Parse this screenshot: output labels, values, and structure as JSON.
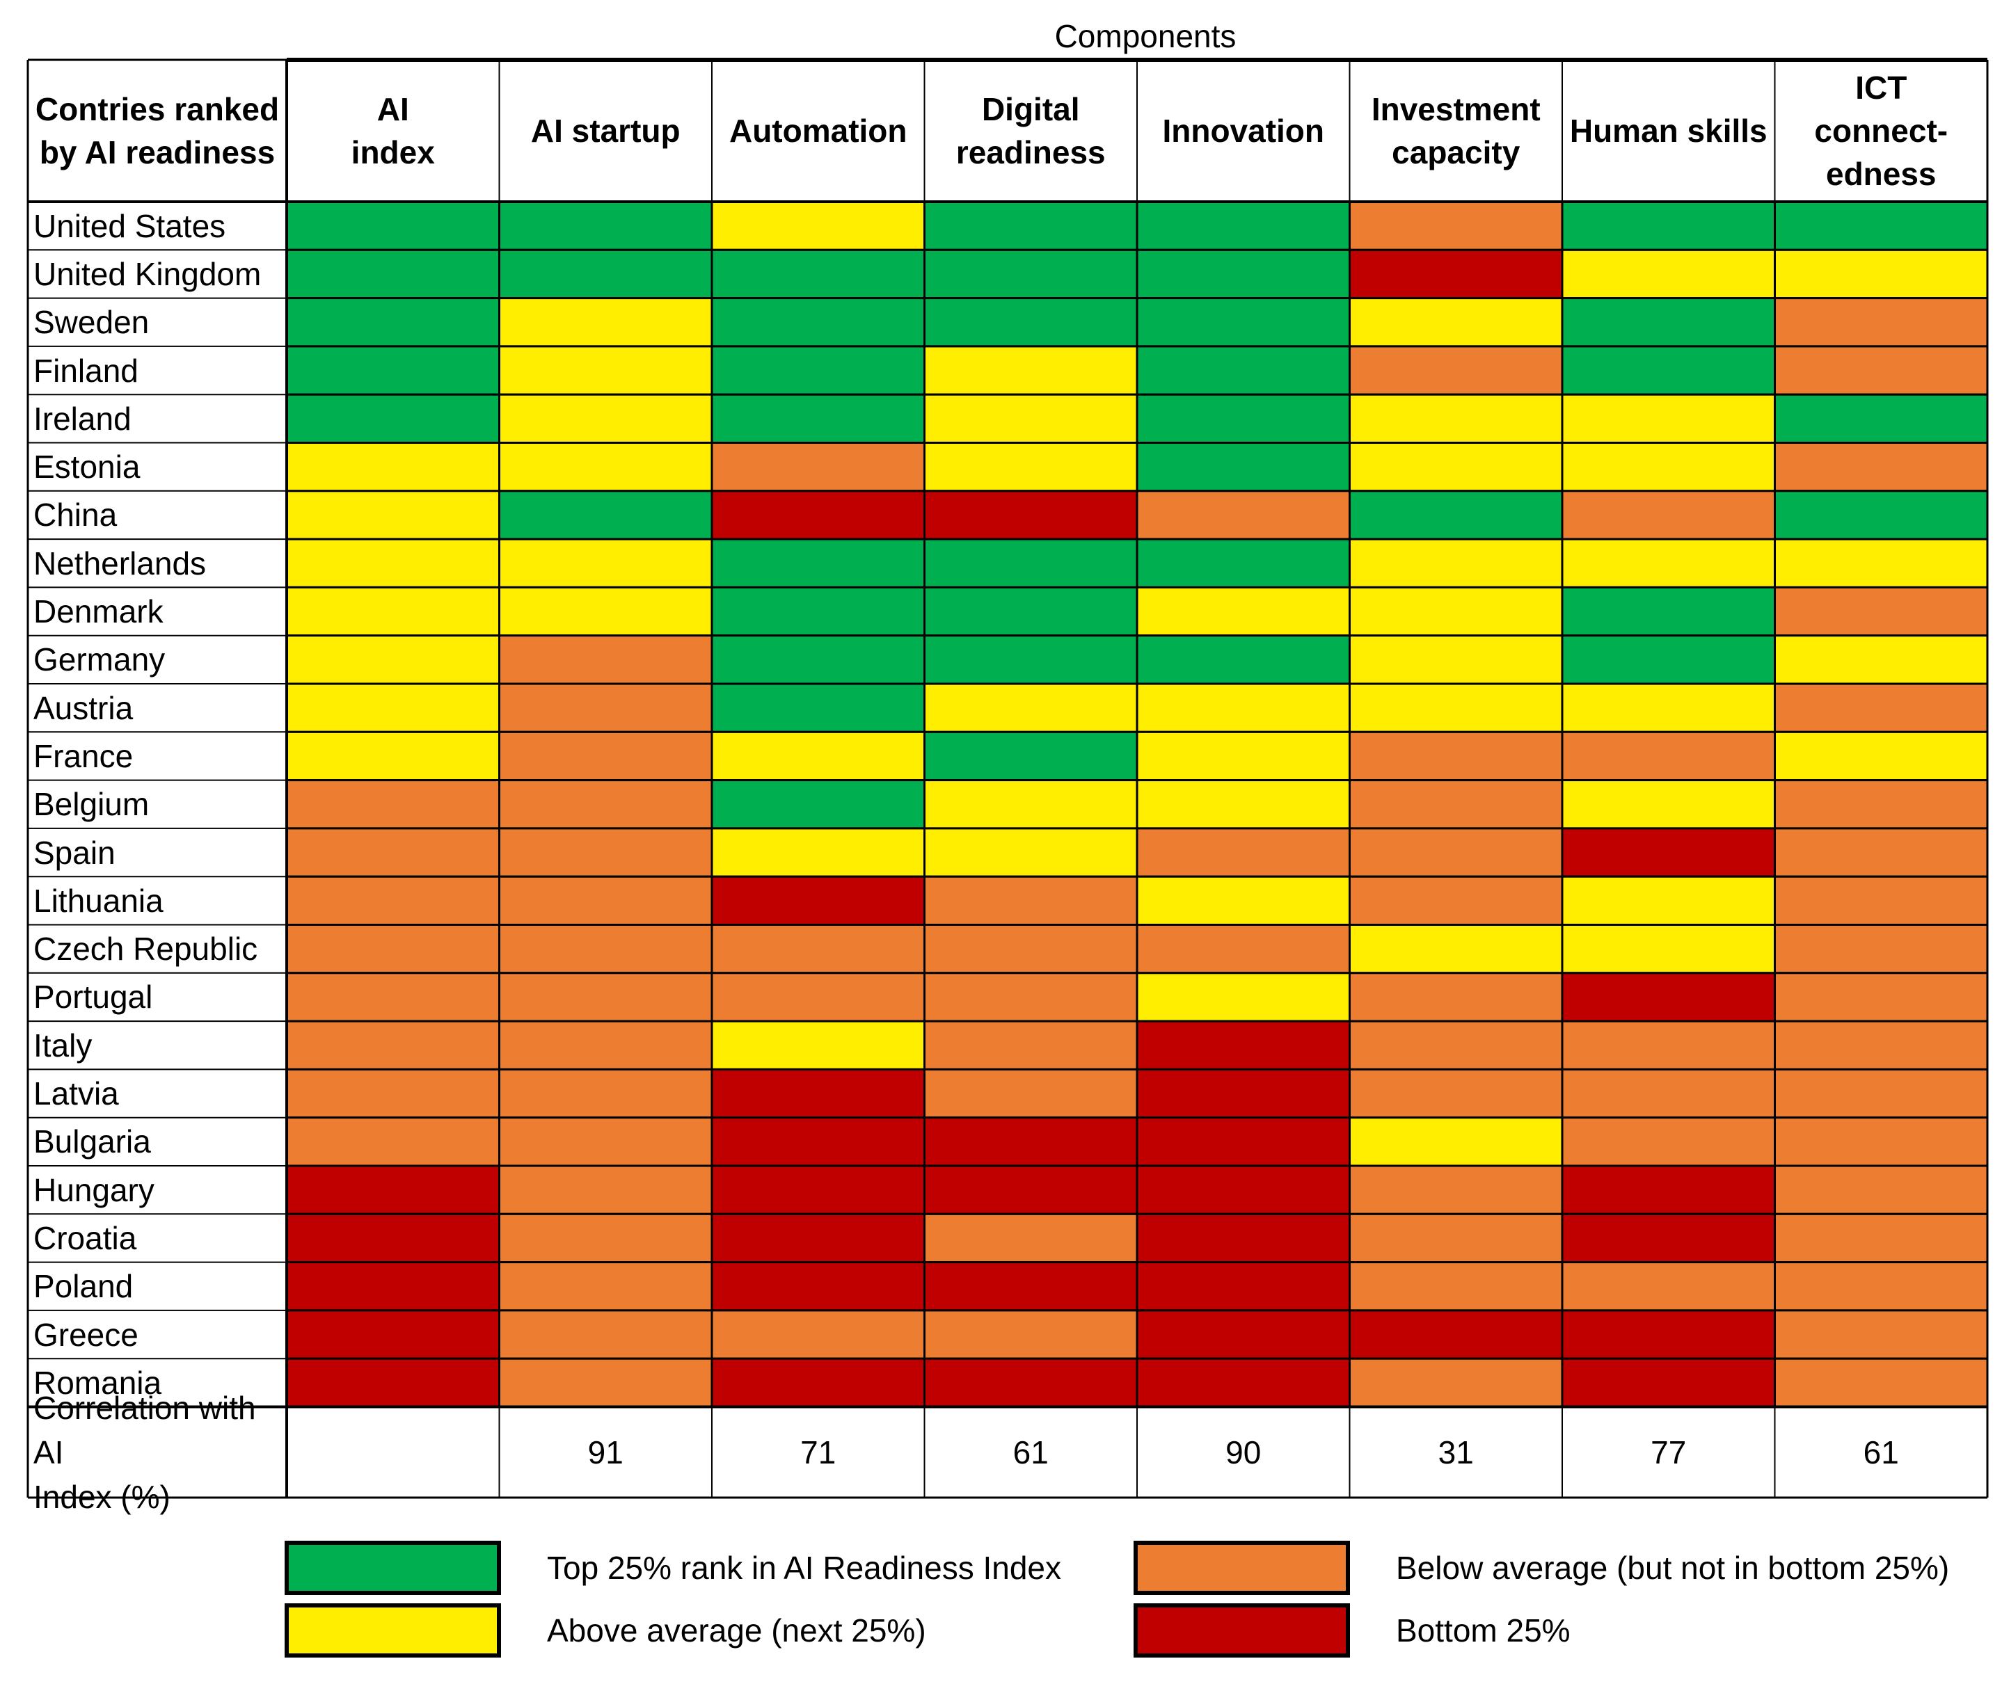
{
  "chart_data": {
    "type": "heatmap",
    "title": "Components",
    "row_header": "Contries ranked\nby AI readiness",
    "columns": [
      "AI\nindex",
      "AI startup",
      "Automation",
      "Digital\nreadiness",
      "Innovation",
      "Investment\ncapacity",
      "Human skills",
      "ICT\nconnect-\nedness"
    ],
    "rows": [
      "United States",
      "United Kingdom",
      "Sweden",
      "Finland",
      "Ireland",
      "Estonia",
      "China",
      "Netherlands",
      "Denmark",
      "Germany",
      "Austria",
      "France",
      "Belgium",
      "Spain",
      "Lithuania",
      "Czech Republic",
      "Portugal",
      "Italy",
      "Latvia",
      "Bulgaria",
      "Hungary",
      "Croatia",
      "Poland",
      "Greece",
      "Romania"
    ],
    "category_codes": "1 = Top 25%, 2 = Above average, 3 = Below average, 4 = Bottom 25%",
    "cells": [
      [
        1,
        1,
        2,
        1,
        1,
        3,
        1,
        1
      ],
      [
        1,
        1,
        1,
        1,
        1,
        4,
        2,
        2
      ],
      [
        1,
        2,
        1,
        1,
        1,
        2,
        1,
        3
      ],
      [
        1,
        2,
        1,
        2,
        1,
        3,
        1,
        3
      ],
      [
        1,
        2,
        1,
        2,
        1,
        2,
        2,
        1
      ],
      [
        2,
        2,
        3,
        2,
        1,
        2,
        2,
        3
      ],
      [
        2,
        1,
        4,
        4,
        3,
        1,
        3,
        1
      ],
      [
        2,
        2,
        1,
        1,
        1,
        2,
        2,
        2
      ],
      [
        2,
        2,
        1,
        1,
        2,
        2,
        1,
        3
      ],
      [
        2,
        3,
        1,
        1,
        1,
        2,
        1,
        2
      ],
      [
        2,
        3,
        1,
        2,
        2,
        2,
        2,
        3
      ],
      [
        2,
        3,
        2,
        1,
        2,
        3,
        3,
        2
      ],
      [
        3,
        3,
        1,
        2,
        2,
        3,
        2,
        3
      ],
      [
        3,
        3,
        2,
        2,
        3,
        3,
        4,
        3
      ],
      [
        3,
        3,
        4,
        3,
        2,
        3,
        2,
        3
      ],
      [
        3,
        3,
        3,
        3,
        3,
        2,
        2,
        3
      ],
      [
        3,
        3,
        3,
        3,
        2,
        3,
        4,
        3
      ],
      [
        3,
        3,
        2,
        3,
        4,
        3,
        3,
        3
      ],
      [
        3,
        3,
        4,
        3,
        4,
        3,
        3,
        3
      ],
      [
        3,
        3,
        4,
        4,
        4,
        2,
        3,
        3
      ],
      [
        4,
        3,
        4,
        4,
        4,
        3,
        4,
        3
      ],
      [
        4,
        3,
        4,
        3,
        4,
        3,
        4,
        3
      ],
      [
        4,
        3,
        4,
        4,
        4,
        3,
        3,
        3
      ],
      [
        4,
        3,
        3,
        3,
        4,
        4,
        4,
        3
      ],
      [
        4,
        3,
        4,
        4,
        4,
        3,
        4,
        3
      ]
    ],
    "correlation_label": "Correlation with AI\nIndex (%)",
    "correlation": [
      "",
      "91",
      "71",
      "61",
      "90",
      "31",
      "77",
      "61"
    ],
    "legend": [
      {
        "code": 1,
        "label": "Top 25% rank in AI Readiness Index",
        "color": "#00b050"
      },
      {
        "code": 2,
        "label": "Above average (next 25%)",
        "color": "#ffee00"
      },
      {
        "code": 3,
        "label": "Below average (but not in bottom 25%)",
        "color": "#ed7d31"
      },
      {
        "code": 4,
        "label": "Bottom 25%",
        "color": "#c00000"
      }
    ]
  }
}
